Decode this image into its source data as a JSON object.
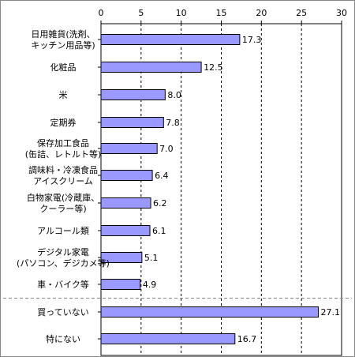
{
  "chart_data": {
    "type": "bar",
    "orientation": "horizontal",
    "title": "",
    "xlabel": "",
    "ylabel": "",
    "xlim": [
      0,
      30
    ],
    "x_ticks": [
      0,
      5,
      10,
      15,
      20,
      25,
      30
    ],
    "grid": "vertical dashed",
    "colors": {
      "bar": "#9999ff",
      "bar_border": "#000000"
    },
    "categories": [
      [
        "日用雑貨(洗剤、",
        "キッチン用品等)"
      ],
      [
        "化粧品"
      ],
      [
        "米"
      ],
      [
        "定期券"
      ],
      [
        "保存加工食品",
        "(缶詰、レトルト等)"
      ],
      [
        "調味料・冷凍食品",
        "アイスクリーム"
      ],
      [
        "白物家電(冷蔵庫、",
        "クーラー等)"
      ],
      [
        "アルコール類"
      ],
      [
        "デジタル家電",
        "(パソコン、デジカメ等)"
      ],
      [
        "車・バイク等"
      ],
      [
        "買っていない"
      ],
      [
        "特にない"
      ]
    ],
    "values": [
      17.3,
      12.5,
      8.0,
      7.8,
      7.0,
      6.4,
      6.2,
      6.1,
      5.1,
      4.9,
      27.1,
      16.7
    ],
    "value_labels": [
      "17.3",
      "12.5",
      "8.0",
      "7.8",
      "7.0",
      "6.4",
      "6.2",
      "6.1",
      "5.1",
      "4.9",
      "27.1",
      "16.7"
    ],
    "separator_after_index": 9
  }
}
